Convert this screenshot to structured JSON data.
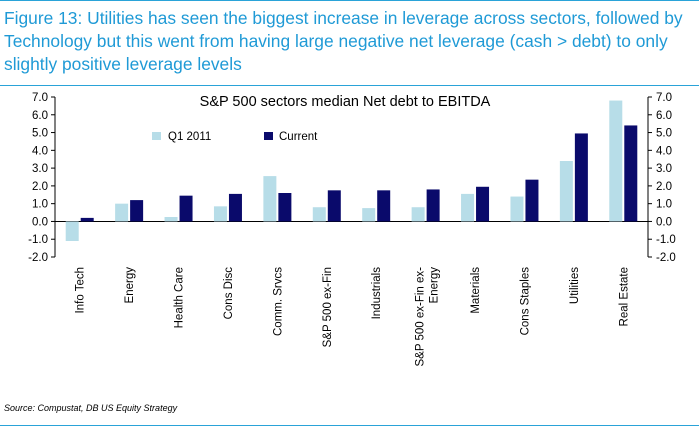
{
  "figure": {
    "caption": "Figure 13: Utilities has seen the biggest increase in leverage across sectors, followed by Technology but this went from having large negative net leverage (cash > debt) to only slightly positive leverage levels",
    "source": "Source: Compustat, DB US Equity Strategy"
  },
  "colors": {
    "q1_2011": "#b7dde8",
    "current": "#0a0a6b",
    "accent": "#1f9ad6"
  },
  "chart_data": {
    "type": "bar",
    "title": "S&P 500 sectors median Net debt to EBITDA",
    "categories": [
      "Info Tech",
      "Energy",
      "Health Care",
      "Cons Disc",
      "Comm. Srvcs",
      "S&P 500 ex-Fin",
      "Industrials",
      "S&P 500 ex-Fin ex-Energy",
      "Materials",
      "Cons Staples",
      "Utilities",
      "Real Estate"
    ],
    "category_lines": [
      [
        "Info Tech"
      ],
      [
        "Energy"
      ],
      [
        "Health Care"
      ],
      [
        "Cons Disc"
      ],
      [
        "Comm. Srvcs"
      ],
      [
        "S&P 500 ex-Fin"
      ],
      [
        "Industrials"
      ],
      [
        "S&P 500 ex-Fin ex-",
        "Energy"
      ],
      [
        "Materials"
      ],
      [
        "Cons Staples"
      ],
      [
        "Utilities"
      ],
      [
        "Real Estate"
      ]
    ],
    "series": [
      {
        "name": "Q1 2011",
        "values": [
          -1.1,
          1.0,
          0.25,
          0.85,
          2.55,
          0.8,
          0.75,
          0.8,
          1.55,
          1.4,
          3.4,
          6.8
        ]
      },
      {
        "name": "Current",
        "values": [
          0.2,
          1.2,
          1.45,
          1.55,
          1.6,
          1.75,
          1.75,
          1.8,
          1.95,
          2.35,
          4.95,
          5.4
        ]
      }
    ],
    "ylim": [
      -2.0,
      7.0
    ],
    "yticks": [
      "-2.0",
      "-1.0",
      "0.0",
      "1.0",
      "2.0",
      "3.0",
      "4.0",
      "5.0",
      "6.0",
      "7.0"
    ],
    "secondary_axis": true,
    "legend_position": "top-left",
    "xlabel": "",
    "ylabel": ""
  }
}
